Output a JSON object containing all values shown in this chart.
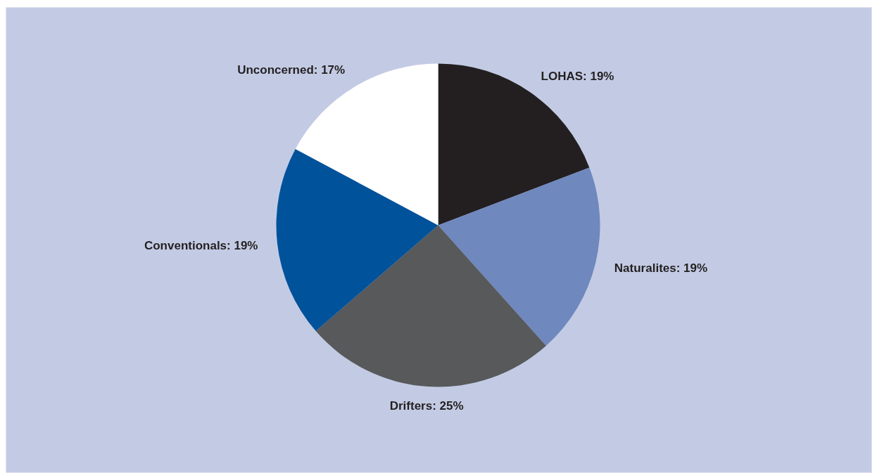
{
  "chart_data": {
    "type": "pie",
    "categories": [
      "LOHAS",
      "Naturalites",
      "Drifters",
      "Conventionals",
      "Unconcerned"
    ],
    "values": [
      19,
      19,
      25,
      19,
      17
    ],
    "value_labels": [
      "19%",
      "19%",
      "25%",
      "19%",
      "17%"
    ],
    "colors": [
      "#231f20",
      "#6f88be",
      "#58595b",
      "#00529b",
      "#ffffff"
    ]
  }
}
